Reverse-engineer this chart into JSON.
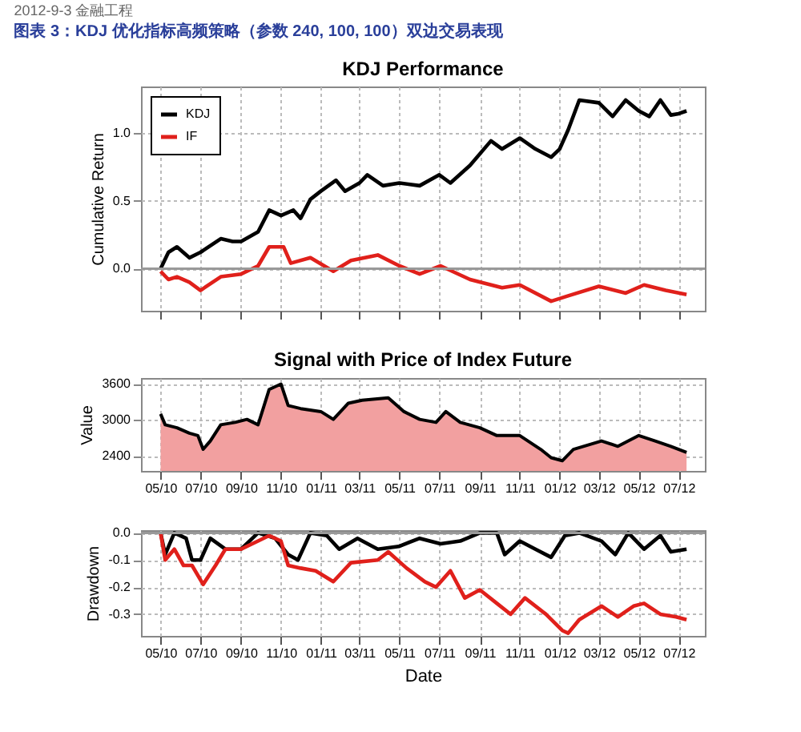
{
  "chart_data": [
    {
      "type": "line",
      "title": "KDJ Performance",
      "ylabel": "Cumulative Return",
      "annotations": [
        "2012-9-3 金融工程",
        "图表 3：KDJ 优化指标高频策略（参数 240, 100, 100）双边交易表现"
      ],
      "xlim": [
        "2010-04-01",
        "2012-08-10"
      ],
      "xticks": [
        {
          "value": "2010-05-01",
          "label": null
        },
        {
          "value": "2010-07-01",
          "label": null
        },
        {
          "value": "2010-09-01",
          "label": null
        },
        {
          "value": "2010-11-01",
          "label": null
        },
        {
          "value": "2011-01-01",
          "label": null
        },
        {
          "value": "2011-03-01",
          "label": null
        },
        {
          "value": "2011-05-01",
          "label": null
        },
        {
          "value": "2011-07-01",
          "label": null
        },
        {
          "value": "2011-09-01",
          "label": null
        },
        {
          "value": "2011-11-01",
          "label": null
        },
        {
          "value": "2012-01-01",
          "label": null
        },
        {
          "value": "2012-03-01",
          "label": null
        },
        {
          "value": "2012-05-01",
          "label": null
        },
        {
          "value": "2012-07-01",
          "label": null
        }
      ],
      "tick_labels": "y",
      "ylim": [
        -0.31,
        1.34
      ],
      "yticks": [
        {
          "value": 0,
          "label": "0.0"
        },
        {
          "value": 0.5,
          "label": "0.5"
        },
        {
          "value": 1,
          "label": "1.0"
        }
      ],
      "grid": true,
      "legend": "top left",
      "ref_lines": [
        {
          "axis": "y",
          "value": 0,
          "color": "#999999"
        }
      ],
      "series": [
        {
          "name": "KDJ",
          "color": "#000000",
          "x": [
            "2010-05-01",
            "2010-05-13",
            "2010-05-26",
            "2010-06-14",
            "2010-07-01",
            "2010-08-01",
            "2010-08-19",
            "2010-09-01",
            "2010-09-27",
            "2010-10-14",
            "2010-11-01",
            "2010-11-20",
            "2010-12-01",
            "2010-12-16",
            "2011-01-01",
            "2011-01-24",
            "2011-02-07",
            "2011-03-01",
            "2011-03-13",
            "2011-04-06",
            "2011-05-01",
            "2011-06-01",
            "2011-07-01",
            "2011-07-18",
            "2011-08-17",
            "2011-09-18",
            "2011-10-05",
            "2011-11-01",
            "2011-11-25",
            "2011-12-19",
            "2012-01-01",
            "2012-01-14",
            "2012-01-31",
            "2012-03-01",
            "2012-03-22",
            "2012-04-11",
            "2012-05-01",
            "2012-05-17",
            "2012-06-03",
            "2012-06-19",
            "2012-07-01",
            "2012-07-13"
          ],
          "values": [
            0.0,
            0.12,
            0.16,
            0.08,
            0.12,
            0.22,
            0.2,
            0.2,
            0.27,
            0.43,
            0.39,
            0.43,
            0.37,
            0.51,
            0.57,
            0.65,
            0.57,
            0.63,
            0.69,
            0.61,
            0.63,
            0.61,
            0.69,
            0.63,
            0.76,
            0.94,
            0.88,
            0.96,
            0.88,
            0.82,
            0.88,
            1.02,
            1.24,
            1.22,
            1.12,
            1.24,
            1.16,
            1.12,
            1.24,
            1.13,
            1.14,
            1.16
          ]
        },
        {
          "name": "IF",
          "color": "#e0201b",
          "x": [
            "2010-05-01",
            "2010-05-13",
            "2010-05-26",
            "2010-06-14",
            "2010-07-01",
            "2010-08-01",
            "2010-09-01",
            "2010-09-27",
            "2010-10-14",
            "2010-11-05",
            "2010-11-16",
            "2010-12-16",
            "2011-01-20",
            "2011-02-16",
            "2011-03-29",
            "2011-05-01",
            "2011-06-01",
            "2011-07-03",
            "2011-08-17",
            "2011-10-05",
            "2011-11-01",
            "2011-12-19",
            "2012-01-14",
            "2012-03-01",
            "2012-04-11",
            "2012-05-09",
            "2012-06-11",
            "2012-07-13"
          ],
          "values": [
            -0.02,
            -0.08,
            -0.06,
            -0.1,
            -0.16,
            -0.06,
            -0.04,
            0.02,
            0.16,
            0.16,
            0.04,
            0.08,
            -0.02,
            0.06,
            0.1,
            0.02,
            -0.04,
            0.02,
            -0.08,
            -0.14,
            -0.12,
            -0.24,
            -0.2,
            -0.13,
            -0.18,
            -0.12,
            -0.16,
            -0.19
          ]
        }
      ]
    },
    {
      "type": "area",
      "title": "Signal with Price of Index Future",
      "ylabel": "Value",
      "color": "#f2a0a0",
      "xlim": [
        "2010-04-01",
        "2012-08-10"
      ],
      "xticks": [
        {
          "value": "2010-05-01",
          "label": "05/10"
        },
        {
          "value": "2010-07-01",
          "label": "07/10"
        },
        {
          "value": "2010-09-01",
          "label": "09/10"
        },
        {
          "value": "2010-11-01",
          "label": "11/10"
        },
        {
          "value": "2011-01-01",
          "label": "01/11"
        },
        {
          "value": "2011-03-01",
          "label": "03/11"
        },
        {
          "value": "2011-05-01",
          "label": "05/11"
        },
        {
          "value": "2011-07-01",
          "label": "07/11"
        },
        {
          "value": "2011-09-01",
          "label": "09/11"
        },
        {
          "value": "2011-11-01",
          "label": "11/11"
        },
        {
          "value": "2012-01-01",
          "label": "01/12"
        },
        {
          "value": "2012-03-01",
          "label": "03/12"
        },
        {
          "value": "2012-05-01",
          "label": "05/12"
        },
        {
          "value": "2012-07-01",
          "label": "07/12"
        }
      ],
      "ylim": [
        2150,
        3700
      ],
      "yticks": [
        2400,
        3000,
        3600
      ],
      "grid": true,
      "x": [
        "2010-05-01",
        "2010-05-08",
        "2010-05-26",
        "2010-06-14",
        "2010-06-27",
        "2010-07-05",
        "2010-07-16",
        "2010-08-01",
        "2010-08-23",
        "2010-09-10",
        "2010-09-27",
        "2010-10-14",
        "2010-11-01",
        "2010-11-12",
        "2010-12-01",
        "2011-01-01",
        "2011-01-20",
        "2011-02-12",
        "2011-03-05",
        "2011-04-14",
        "2011-05-08",
        "2011-06-01",
        "2011-06-26",
        "2011-07-11",
        "2011-08-02",
        "2011-09-01",
        "2011-09-27",
        "2011-11-01",
        "2011-12-03",
        "2011-12-19",
        "2012-01-05",
        "2012-01-22",
        "2012-03-05",
        "2012-03-30",
        "2012-05-01",
        "2012-05-26",
        "2012-06-19",
        "2012-07-13"
      ],
      "values": [
        3100,
        2920,
        2870,
        2780,
        2740,
        2510,
        2650,
        2920,
        2960,
        3010,
        2920,
        3510,
        3600,
        3240,
        3190,
        3140,
        3010,
        3280,
        3330,
        3370,
        3140,
        3010,
        2960,
        3140,
        2960,
        2870,
        2740,
        2740,
        2510,
        2370,
        2320,
        2510,
        2650,
        2560,
        2740,
        2650,
        2560,
        2460
      ]
    },
    {
      "type": "line",
      "ylabel": "Drawdown",
      "xlabel": "Date",
      "xlim": [
        "2010-04-01",
        "2012-08-10"
      ],
      "xticks": [
        {
          "value": "2010-05-01",
          "label": "05/10"
        },
        {
          "value": "2010-07-01",
          "label": "07/10"
        },
        {
          "value": "2010-09-01",
          "label": "09/10"
        },
        {
          "value": "2010-11-01",
          "label": "11/10"
        },
        {
          "value": "2011-01-01",
          "label": "01/11"
        },
        {
          "value": "2011-03-01",
          "label": "03/11"
        },
        {
          "value": "2011-05-01",
          "label": "05/11"
        },
        {
          "value": "2011-07-01",
          "label": "07/11"
        },
        {
          "value": "2011-09-01",
          "label": "09/11"
        },
        {
          "value": "2011-11-01",
          "label": "11/11"
        },
        {
          "value": "2012-01-01",
          "label": "01/12"
        },
        {
          "value": "2012-03-01",
          "label": "03/12"
        },
        {
          "value": "2012-05-01",
          "label": "05/12"
        },
        {
          "value": "2012-07-01",
          "label": "07/12"
        }
      ],
      "ylim": [
        -0.38,
        0.01
      ],
      "yticks": [
        {
          "value": 0,
          "label": "0.0"
        },
        {
          "value": -0.1,
          "label": "-0.1"
        },
        {
          "value": -0.2,
          "label": "-0.2"
        },
        {
          "value": -0.3,
          "label": "-0.3"
        }
      ],
      "grid": true,
      "ref_lines": [
        {
          "axis": "y",
          "value": 0,
          "color": "#999999"
        }
      ],
      "series": [
        {
          "color": "#000000",
          "x": [
            "2010-05-01",
            "2010-05-08",
            "2010-05-22",
            "2010-06-09",
            "2010-06-18",
            "2010-07-01",
            "2010-07-16",
            "2010-08-08",
            "2010-09-01",
            "2010-09-27",
            "2010-10-23",
            "2010-11-12",
            "2010-11-27",
            "2010-12-16",
            "2011-01-10",
            "2011-01-29",
            "2011-02-26",
            "2011-03-29",
            "2011-04-30",
            "2011-06-01",
            "2011-07-03",
            "2011-08-02",
            "2011-09-01",
            "2011-09-27",
            "2011-10-09",
            "2011-11-01",
            "2011-11-25",
            "2011-12-19",
            "2012-01-09",
            "2012-01-31",
            "2012-03-05",
            "2012-03-26",
            "2012-04-15",
            "2012-05-09",
            "2012-06-03",
            "2012-06-19",
            "2012-07-13"
          ],
          "values": [
            0,
            -0.08,
            0,
            -0.02,
            -0.1,
            -0.1,
            -0.02,
            -0.06,
            -0.06,
            0,
            -0.02,
            -0.08,
            -0.1,
            0,
            -0.01,
            -0.06,
            -0.02,
            -0.06,
            -0.05,
            -0.02,
            -0.04,
            -0.03,
            0,
            0,
            -0.08,
            -0.03,
            -0.06,
            -0.09,
            -0.01,
            0,
            -0.03,
            -0.08,
            0,
            -0.06,
            -0.01,
            -0.07,
            -0.06
          ]
        },
        {
          "color": "#e0201b",
          "x": [
            "2010-05-01",
            "2010-05-08",
            "2010-05-22",
            "2010-06-05",
            "2010-06-18",
            "2010-07-05",
            "2010-07-24",
            "2010-08-08",
            "2010-09-01",
            "2010-09-27",
            "2010-10-14",
            "2010-11-01",
            "2010-11-12",
            "2010-12-01",
            "2010-12-24",
            "2011-01-20",
            "2011-02-16",
            "2011-03-29",
            "2011-04-14",
            "2011-05-12",
            "2011-06-09",
            "2011-06-26",
            "2011-07-18",
            "2011-08-09",
            "2011-09-01",
            "2011-09-27",
            "2011-10-18",
            "2011-11-09",
            "2011-12-11",
            "2012-01-05",
            "2012-01-14",
            "2012-01-31",
            "2012-03-05",
            "2012-03-30",
            "2012-04-23",
            "2012-05-09",
            "2012-06-03",
            "2012-06-27",
            "2012-07-13"
          ],
          "values": [
            0,
            -0.1,
            -0.06,
            -0.12,
            -0.12,
            -0.19,
            -0.12,
            -0.06,
            -0.06,
            -0.03,
            -0.01,
            -0.03,
            -0.12,
            -0.13,
            -0.14,
            -0.18,
            -0.11,
            -0.1,
            -0.07,
            -0.13,
            -0.18,
            -0.2,
            -0.14,
            -0.24,
            -0.21,
            -0.26,
            -0.3,
            -0.24,
            -0.3,
            -0.36,
            -0.37,
            -0.32,
            -0.27,
            -0.31,
            -0.27,
            -0.26,
            -0.3,
            -0.31,
            -0.32
          ]
        }
      ]
    }
  ]
}
